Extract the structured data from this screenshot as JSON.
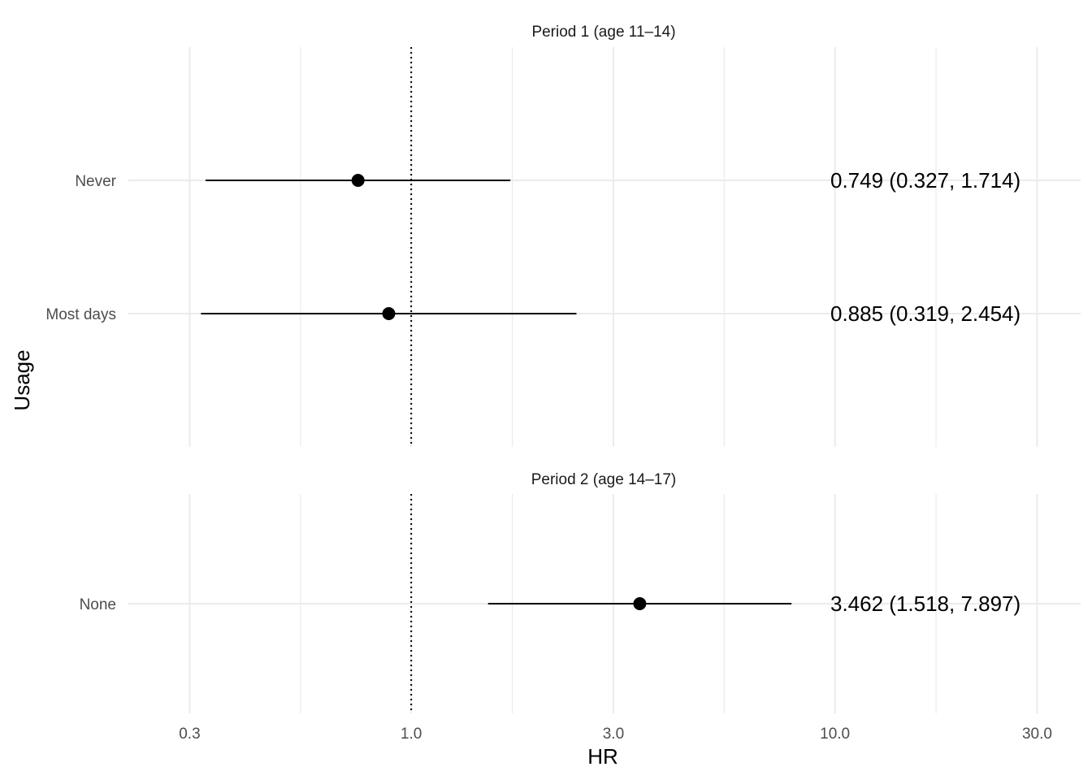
{
  "chart_data": {
    "type": "scatter",
    "subtype": "forest",
    "xlabel": "HR",
    "ylabel": "Usage",
    "x_scale": "log",
    "xlim": [
      0.215,
      38
    ],
    "x_ticks": [
      0.3,
      1.0,
      3.0,
      10.0,
      30.0
    ],
    "x_tick_labels": [
      "0.3",
      "1.0",
      "3.0",
      "10.0",
      "30.0"
    ],
    "reference_line": 1.0,
    "grid": true,
    "legend": "none",
    "panels": [
      {
        "title": "Period 1 (age 11–14)",
        "categories": [
          "Never",
          "Most days"
        ],
        "points": [
          {
            "category": "Never",
            "hr": 0.749,
            "lower": 0.327,
            "upper": 1.714,
            "label": "0.749 (0.327, 1.714)"
          },
          {
            "category": "Most days",
            "hr": 0.885,
            "lower": 0.319,
            "upper": 2.454,
            "label": "0.885 (0.319, 2.454)"
          }
        ]
      },
      {
        "title": "Period 2 (age 14–17)",
        "categories": [
          "None"
        ],
        "points": [
          {
            "category": "None",
            "hr": 3.462,
            "lower": 1.518,
            "upper": 7.897,
            "label": "3.462 (1.518, 7.897)"
          }
        ]
      }
    ]
  }
}
